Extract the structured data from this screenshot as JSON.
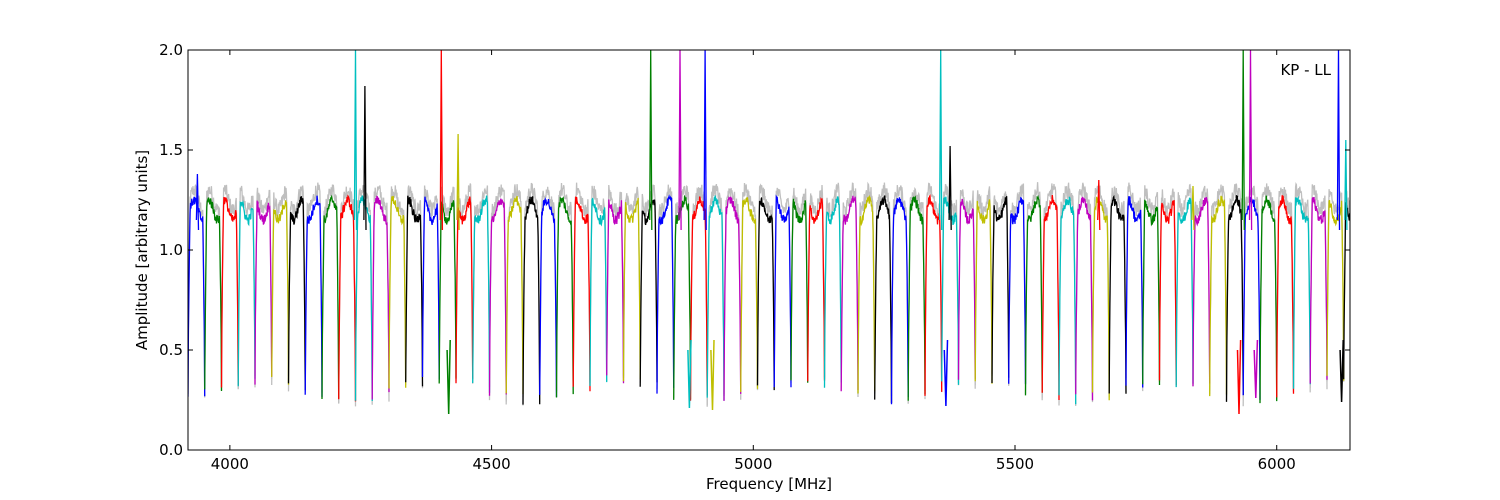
{
  "chart_data": {
    "type": "line",
    "title": "",
    "xlabel": "Frequency [MHz]",
    "ylabel": "Amplitude [arbitrary units]",
    "xlim": [
      3920,
      6140
    ],
    "ylim": [
      0.0,
      2.0
    ],
    "xticks": [
      4000,
      4500,
      5000,
      5500,
      6000
    ],
    "xtick_labels": [
      "4000",
      "4500",
      "5000",
      "5500",
      "6000"
    ],
    "yticks": [
      0.0,
      0.5,
      1.0,
      1.5,
      2.0
    ],
    "ytick_labels": [
      "0.0",
      "0.5",
      "1.0",
      "1.5",
      "2.0"
    ],
    "grid": false,
    "legend": {
      "text": "KP - LL",
      "placement": "top-right"
    },
    "background_series": {
      "color": "#bfbfbf"
    },
    "channel_width_mhz": 32,
    "channel_level": 1.2,
    "channel_edge_level": 0.3,
    "color_cycle": [
      "#0000ff",
      "#008000",
      "#ff0000",
      "#00bfbf",
      "#bf00bf",
      "#bfbf00",
      "#000000"
    ],
    "channel_start_mhz": [
      3920,
      3952,
      3984,
      4016,
      4048,
      4080,
      4112,
      4144,
      4176,
      4208,
      4240,
      4272,
      4304,
      4336,
      4368,
      4400,
      4432,
      4464,
      4496,
      4528,
      4560,
      4592,
      4624,
      4656,
      4688,
      4720,
      4752,
      4784,
      4816,
      4848,
      4880,
      4912,
      4944,
      4976,
      5008,
      5040,
      5072,
      5104,
      5136,
      5168,
      5200,
      5232,
      5264,
      5296,
      5328,
      5360,
      5392,
      5424,
      5456,
      5488,
      5520,
      5552,
      5584,
      5616,
      5648,
      5680,
      5712,
      5744,
      5776,
      5808,
      5840,
      5872,
      5904,
      5936,
      5968,
      6000,
      6032,
      6064,
      6096,
      6128
    ],
    "spikes": [
      {
        "x": 3938,
        "y": 1.38
      },
      {
        "x": 4240,
        "y": 2.0
      },
      {
        "x": 4258,
        "y": 1.82
      },
      {
        "x": 4404,
        "y": 2.0
      },
      {
        "x": 4436,
        "y": 1.58
      },
      {
        "x": 4804,
        "y": 2.0
      },
      {
        "x": 4860,
        "y": 2.0
      },
      {
        "x": 4908,
        "y": 2.0
      },
      {
        "x": 5358,
        "y": 2.0
      },
      {
        "x": 5376,
        "y": 1.52
      },
      {
        "x": 5660,
        "y": 1.35
      },
      {
        "x": 5840,
        "y": 1.32
      },
      {
        "x": 5936,
        "y": 2.0
      },
      {
        "x": 5950,
        "y": 2.0
      },
      {
        "x": 6118,
        "y": 2.0
      },
      {
        "x": 6132,
        "y": 1.55
      }
    ],
    "dips": [
      {
        "x": 4418,
        "y": 0.18
      },
      {
        "x": 4878,
        "y": 0.21
      },
      {
        "x": 4922,
        "y": 0.2
      },
      {
        "x": 5368,
        "y": 0.22
      },
      {
        "x": 5928,
        "y": 0.18
      },
      {
        "x": 5960,
        "y": 0.26
      },
      {
        "x": 6124,
        "y": 0.24
      }
    ]
  }
}
